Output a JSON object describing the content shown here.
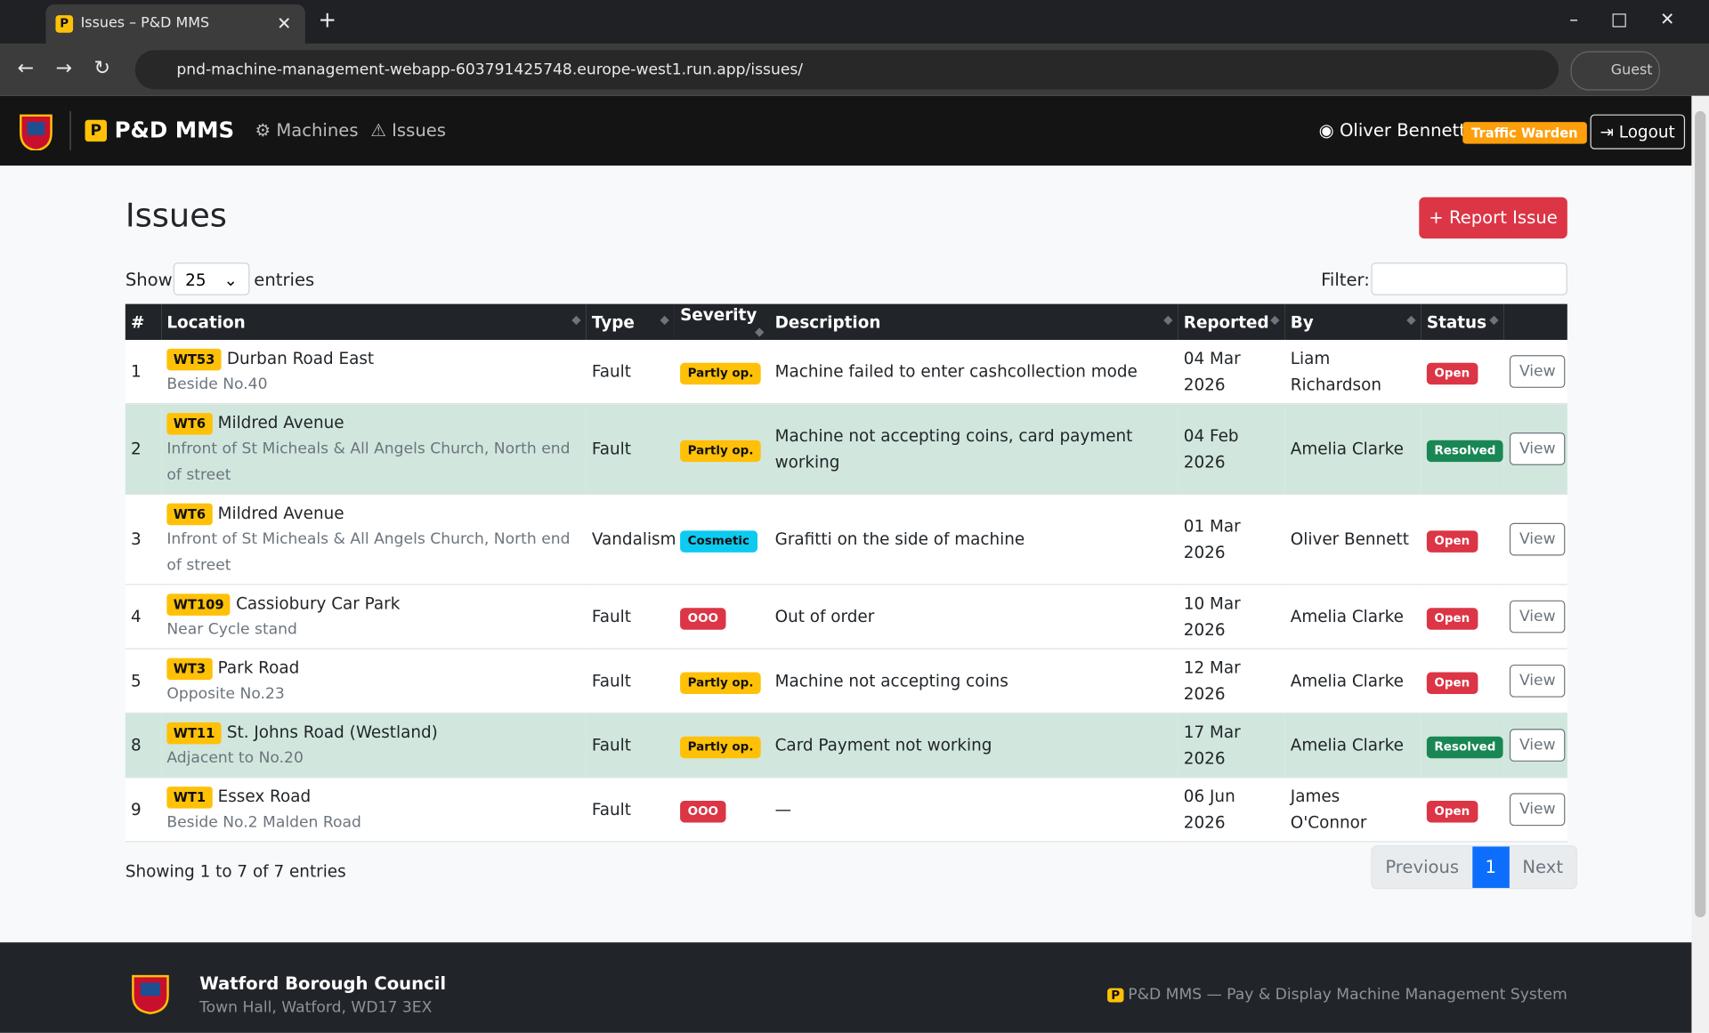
{
  "browser": {
    "tab_title": "Issues – P&D MMS",
    "url": "pnd-machine-management-webapp-603791425748.europe-west1.run.app/issues/",
    "profile": "Guest"
  },
  "navbar": {
    "brand_badge": "P",
    "brand": "P&D MMS",
    "nav": [
      "Machines",
      "Issues"
    ],
    "user": "Oliver Bennett",
    "role": "Traffic Warden",
    "logout": "Logout"
  },
  "page": {
    "title": "Issues",
    "report_button": "Report Issue",
    "show_label": "Show",
    "page_size": "25",
    "entries_label": "entries",
    "filter_label": "Filter:"
  },
  "table": {
    "columns": [
      "#",
      "Location",
      "Type",
      "Severity",
      "Description",
      "Reported",
      "By",
      "Status"
    ],
    "rows": [
      {
        "id": "1",
        "code": "WT53",
        "location": "Durban Road East",
        "sublocation": "Beside No.40",
        "type": "Fault",
        "severity": "Partly op.",
        "severity_color": "#ffc107",
        "description": "Machine failed to enter cashcollection mode",
        "reported": "04 Mar 2026",
        "by": "Liam Richardson",
        "status": "Open",
        "status_color": "#dc3545",
        "highlight": false,
        "action": "View"
      },
      {
        "id": "2",
        "code": "WT6",
        "location": "Mildred Avenue",
        "sublocation": "Infront of St Micheals & All Angels Church, North end of street",
        "type": "Fault",
        "severity": "Partly op.",
        "severity_color": "#ffc107",
        "description": "Machine not accepting coins, card payment working",
        "reported": "04 Feb 2026",
        "by": "Amelia Clarke",
        "status": "Resolved",
        "status_color": "#198754",
        "highlight": true,
        "action": "View"
      },
      {
        "id": "3",
        "code": "WT6",
        "location": "Mildred Avenue",
        "sublocation": "Infront of St Micheals & All Angels Church, North end of street",
        "type": "Vandalism",
        "severity": "Cosmetic",
        "severity_color": "#0dcaf0",
        "description": "Grafitti on the side of machine",
        "reported": "01 Mar 2026",
        "by": "Oliver Bennett",
        "status": "Open",
        "status_color": "#dc3545",
        "highlight": false,
        "action": "View"
      },
      {
        "id": "4",
        "code": "WT109",
        "location": "Cassiobury Car Park",
        "sublocation": "Near Cycle stand",
        "type": "Fault",
        "severity": "OOO",
        "severity_color": "#dc3545",
        "description": "Out of order",
        "reported": "10 Mar 2026",
        "by": "Amelia Clarke",
        "status": "Open",
        "status_color": "#dc3545",
        "highlight": false,
        "action": "View"
      },
      {
        "id": "5",
        "code": "WT3",
        "location": "Park Road",
        "sublocation": "Opposite No.23",
        "type": "Fault",
        "severity": "Partly op.",
        "severity_color": "#ffc107",
        "description": "Machine not accepting coins",
        "reported": "12 Mar 2026",
        "by": "Amelia Clarke",
        "status": "Open",
        "status_color": "#dc3545",
        "highlight": false,
        "action": "View"
      },
      {
        "id": "8",
        "code": "WT11",
        "location": "St. Johns Road (Westland)",
        "sublocation": "Adjacent to No.20",
        "type": "Fault",
        "severity": "Partly op.",
        "severity_color": "#ffc107",
        "description": "Card Payment not working",
        "reported": "17 Mar 2026",
        "by": "Amelia Clarke",
        "status": "Resolved",
        "status_color": "#198754",
        "highlight": true,
        "action": "View"
      },
      {
        "id": "9",
        "code": "WT1",
        "location": "Essex Road",
        "sublocation": "Beside No.2 Malden Road",
        "type": "Fault",
        "severity": "OOO",
        "severity_color": "#dc3545",
        "description": "—",
        "reported": "06 Jun 2026",
        "by": "James O'Connor",
        "status": "Open",
        "status_color": "#dc3545",
        "highlight": false,
        "action": "View"
      }
    ]
  },
  "info": "Showing 1 to 7 of 7 entries",
  "pagination": [
    "Previous",
    "1",
    "Next"
  ],
  "footer": {
    "council": "Watford Borough Council",
    "address": "Town Hall, Watford, WD17 3EX",
    "badge": "P",
    "tagline": "P&D MMS — Pay & Display Machine Management System"
  }
}
